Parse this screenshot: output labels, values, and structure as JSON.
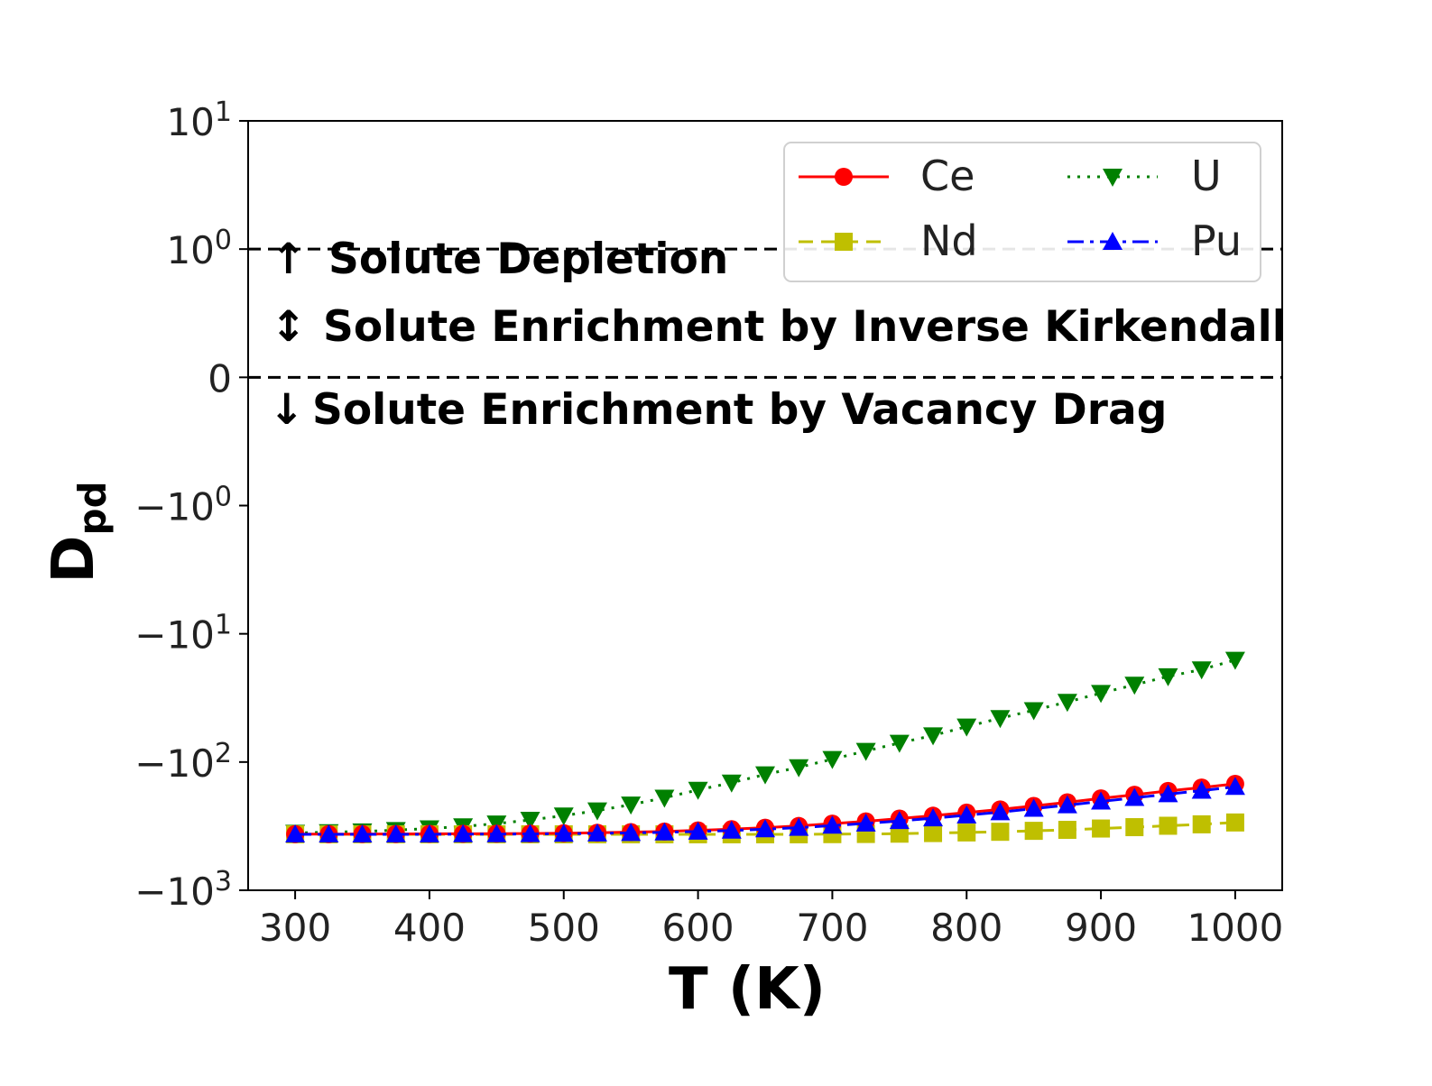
{
  "chart_data": {
    "type": "line",
    "title": "",
    "xlabel": "T (K)",
    "ylabel": "D",
    "ylabel_subscript": "pd",
    "xlim": [
      265,
      1035
    ],
    "ylim": [
      -1000,
      10
    ],
    "yscale": "symlog",
    "symlog_linthresh": 1,
    "x_ticks": [
      300,
      400,
      500,
      600,
      700,
      800,
      900,
      1000
    ],
    "x_tick_labels": [
      "300",
      "400",
      "500",
      "600",
      "700",
      "800",
      "900",
      "1000"
    ],
    "y_ticks": [
      {
        "value": 10,
        "base": "10",
        "exp": "1"
      },
      {
        "value": 1,
        "base": "10",
        "exp": "0"
      },
      {
        "value": 0,
        "base": "0",
        "exp": ""
      },
      {
        "value": -1,
        "base": "−10",
        "exp": "0"
      },
      {
        "value": -10,
        "base": "−10",
        "exp": "1"
      },
      {
        "value": -100,
        "base": "−10",
        "exp": "2"
      },
      {
        "value": -1000,
        "base": "−10",
        "exp": "3"
      }
    ],
    "grid": false,
    "legend_position": "top-right",
    "x": [
      300,
      325,
      350,
      375,
      400,
      425,
      450,
      475,
      500,
      525,
      550,
      575,
      600,
      625,
      650,
      675,
      700,
      725,
      750,
      775,
      800,
      825,
      850,
      875,
      900,
      925,
      950,
      975,
      1000
    ],
    "series": [
      {
        "name": "Ce",
        "color": "#ff0000",
        "linestyle": "solid",
        "marker": "circle",
        "values": [
          -365,
          -365,
          -364,
          -364,
          -363,
          -363,
          -362,
          -361,
          -359,
          -356,
          -352,
          -348,
          -341,
          -334,
          -325,
          -315,
          -302,
          -290,
          -276,
          -262,
          -248,
          -234,
          -220,
          -206,
          -192,
          -180,
          -168,
          -158,
          -148
        ]
      },
      {
        "name": "U",
        "color": "#008000",
        "linestyle": "dotted",
        "marker": "triangle-down",
        "values": [
          -357,
          -353,
          -348,
          -340,
          -330,
          -318,
          -302,
          -283,
          -262,
          -239,
          -215,
          -190,
          -165,
          -145,
          -125,
          -110,
          -95,
          -82,
          -71,
          -62,
          -53,
          -45.5,
          -39.5,
          -34,
          -29,
          -25,
          -21.5,
          -19,
          -16
        ]
      },
      {
        "name": "Nd",
        "color": "#bfbf00",
        "linestyle": "dashed",
        "marker": "square",
        "values": [
          -366,
          -366,
          -366,
          -366,
          -366,
          -366,
          -366,
          -366,
          -366,
          -366,
          -366,
          -366,
          -366,
          -366,
          -366,
          -366,
          -365,
          -364,
          -362,
          -358,
          -354,
          -350,
          -344,
          -338,
          -330,
          -322,
          -314,
          -306,
          -296
        ]
      },
      {
        "name": "Pu",
        "color": "#0000ff",
        "linestyle": "dashdot",
        "marker": "triangle-up",
        "values": [
          -366,
          -366,
          -366,
          -366,
          -366,
          -365,
          -365,
          -364,
          -362,
          -360,
          -357,
          -353,
          -348,
          -342,
          -334,
          -325,
          -313,
          -301,
          -288,
          -274,
          -260,
          -246,
          -231,
          -217,
          -203,
          -190,
          -178,
          -167,
          -156
        ]
      }
    ],
    "legend_columns": [
      [
        "Ce",
        "Nd"
      ],
      [
        "U",
        "Pu"
      ]
    ],
    "reference_lines": [
      1,
      0
    ],
    "annotations": [
      {
        "arrow": "↑",
        "text": "Solute Depletion"
      },
      {
        "arrow": "↕",
        "text": "Solute Enrichment by Inverse Kirkendall"
      },
      {
        "arrow": "↓",
        "text": "Solute Enrichment by Vacancy Drag"
      }
    ]
  }
}
